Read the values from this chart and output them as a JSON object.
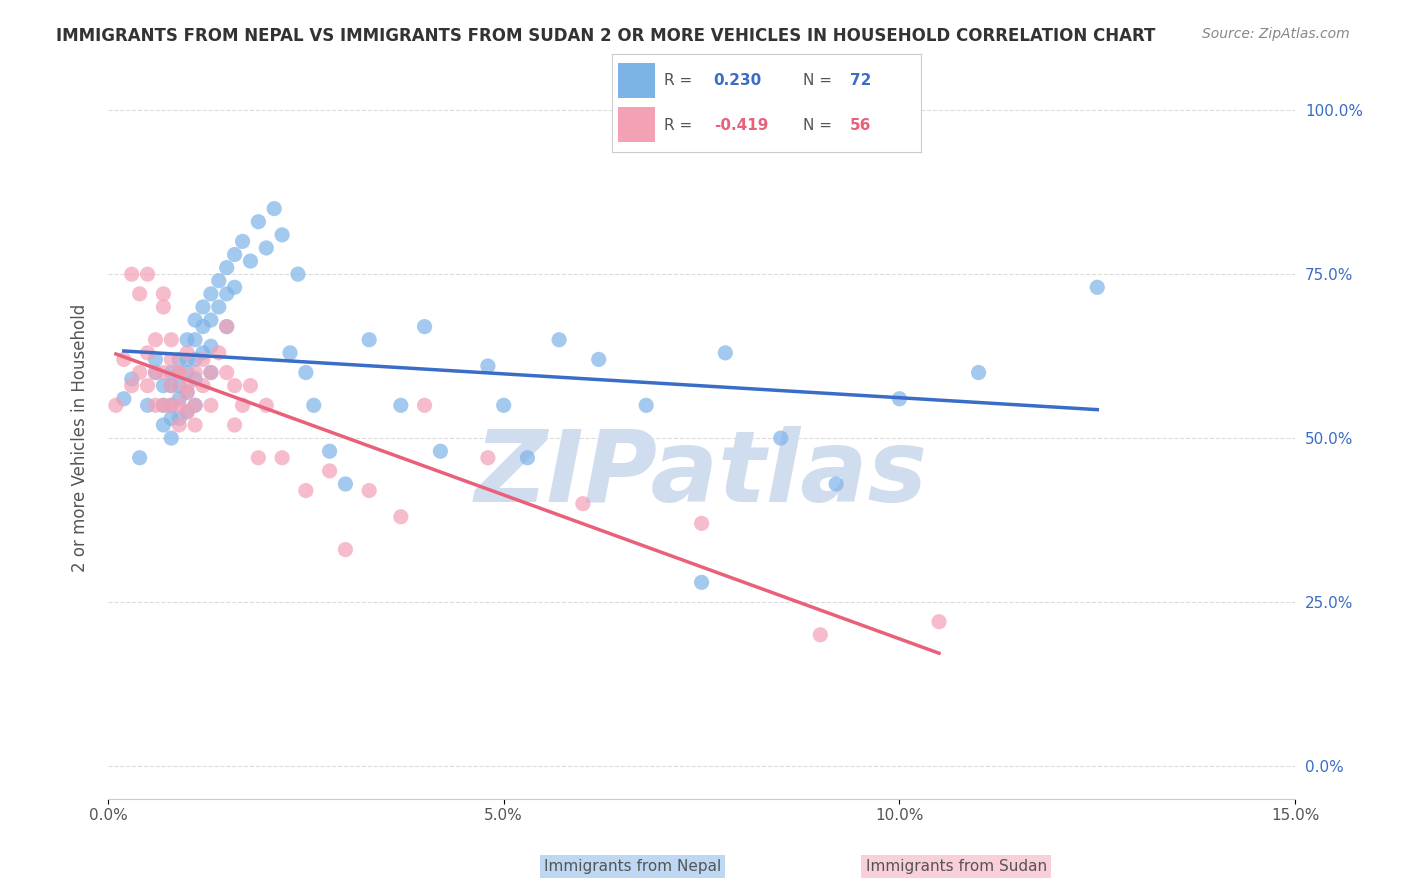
{
  "title": "IMMIGRANTS FROM NEPAL VS IMMIGRANTS FROM SUDAN 2 OR MORE VEHICLES IN HOUSEHOLD CORRELATION CHART",
  "source": "Source: ZipAtlas.com",
  "xlabel_ticks": [
    "0.0%",
    "5.0%",
    "10.0%",
    "15.0%"
  ],
  "ylabel_label": "2 or more Vehicles in Household",
  "ylabel_ticks": [
    "0.0%",
    "25.0%",
    "50.0%",
    "75.0%",
    "100.0%"
  ],
  "xlim": [
    0.0,
    0.15
  ],
  "ylim": [
    -0.05,
    1.05
  ],
  "nepal_R": 0.23,
  "nepal_N": 72,
  "sudan_R": -0.419,
  "sudan_N": 56,
  "nepal_color": "#7EB3E8",
  "sudan_color": "#F4A0B5",
  "nepal_line_color": "#3A6DC7",
  "sudan_line_color": "#E8607A",
  "background_color": "#FFFFFF",
  "grid_color": "#CCCCCC",
  "watermark_text": "ZIPatlas",
  "watermark_color": "#D0DDEF",
  "nepal_x": [
    0.002,
    0.003,
    0.004,
    0.005,
    0.006,
    0.006,
    0.007,
    0.007,
    0.007,
    0.008,
    0.008,
    0.008,
    0.008,
    0.008,
    0.009,
    0.009,
    0.009,
    0.009,
    0.009,
    0.01,
    0.01,
    0.01,
    0.01,
    0.01,
    0.011,
    0.011,
    0.011,
    0.011,
    0.011,
    0.012,
    0.012,
    0.012,
    0.013,
    0.013,
    0.013,
    0.013,
    0.014,
    0.014,
    0.015,
    0.015,
    0.015,
    0.016,
    0.016,
    0.017,
    0.018,
    0.019,
    0.02,
    0.021,
    0.022,
    0.023,
    0.024,
    0.025,
    0.026,
    0.028,
    0.03,
    0.033,
    0.037,
    0.04,
    0.042,
    0.048,
    0.05,
    0.053,
    0.057,
    0.062,
    0.068,
    0.075,
    0.078,
    0.085,
    0.092,
    0.1,
    0.11,
    0.125
  ],
  "nepal_y": [
    0.56,
    0.59,
    0.47,
    0.55,
    0.6,
    0.62,
    0.58,
    0.55,
    0.52,
    0.6,
    0.58,
    0.55,
    0.53,
    0.5,
    0.62,
    0.6,
    0.58,
    0.56,
    0.53,
    0.65,
    0.62,
    0.6,
    0.57,
    0.54,
    0.68,
    0.65,
    0.62,
    0.59,
    0.55,
    0.7,
    0.67,
    0.63,
    0.72,
    0.68,
    0.64,
    0.6,
    0.74,
    0.7,
    0.76,
    0.72,
    0.67,
    0.78,
    0.73,
    0.8,
    0.77,
    0.83,
    0.79,
    0.85,
    0.81,
    0.63,
    0.75,
    0.6,
    0.55,
    0.48,
    0.43,
    0.65,
    0.55,
    0.67,
    0.48,
    0.61,
    0.55,
    0.47,
    0.65,
    0.62,
    0.55,
    0.28,
    0.63,
    0.5,
    0.43,
    0.56,
    0.6,
    0.73
  ],
  "sudan_x": [
    0.001,
    0.002,
    0.003,
    0.003,
    0.004,
    0.004,
    0.005,
    0.005,
    0.005,
    0.006,
    0.006,
    0.006,
    0.007,
    0.007,
    0.007,
    0.007,
    0.008,
    0.008,
    0.008,
    0.008,
    0.009,
    0.009,
    0.009,
    0.009,
    0.01,
    0.01,
    0.01,
    0.01,
    0.011,
    0.011,
    0.011,
    0.012,
    0.012,
    0.013,
    0.013,
    0.014,
    0.015,
    0.015,
    0.016,
    0.016,
    0.017,
    0.018,
    0.019,
    0.02,
    0.022,
    0.025,
    0.028,
    0.03,
    0.033,
    0.037,
    0.04,
    0.048,
    0.06,
    0.075,
    0.09,
    0.105
  ],
  "sudan_y": [
    0.55,
    0.62,
    0.58,
    0.75,
    0.6,
    0.72,
    0.58,
    0.63,
    0.75,
    0.55,
    0.6,
    0.65,
    0.7,
    0.6,
    0.55,
    0.72,
    0.62,
    0.58,
    0.65,
    0.55,
    0.6,
    0.55,
    0.52,
    0.6,
    0.57,
    0.63,
    0.58,
    0.54,
    0.6,
    0.55,
    0.52,
    0.62,
    0.58,
    0.6,
    0.55,
    0.63,
    0.67,
    0.6,
    0.58,
    0.52,
    0.55,
    0.58,
    0.47,
    0.55,
    0.47,
    0.42,
    0.45,
    0.33,
    0.42,
    0.38,
    0.55,
    0.47,
    0.4,
    0.37,
    0.2,
    0.22
  ]
}
